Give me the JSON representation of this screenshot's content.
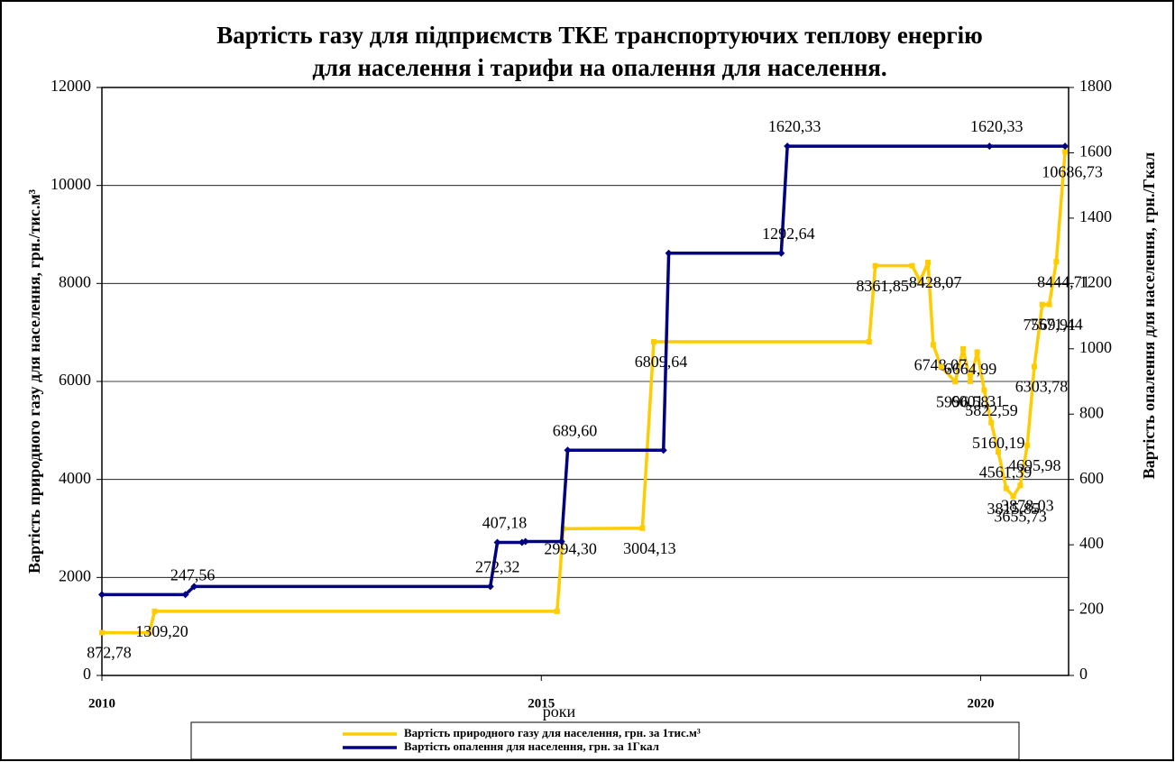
{
  "chart_data": {
    "type": "line",
    "title": [
      "Вартість газу для підприємств ТКЕ транспортуючих теплову енергію",
      "для населення і тарифи на опалення для населення."
    ],
    "x_label": "роки",
    "y_label": "Вартість природного газу для населення, грн./тис.м³",
    "y2_label": "Вартість опалення для населення, грн./Гкал",
    "xlim": [
      2010,
      2021
    ],
    "xticks": [
      2010,
      2015,
      2020
    ],
    "ylim": [
      0,
      12000
    ],
    "yticks": [
      0,
      2000,
      4000,
      6000,
      8000,
      10000,
      12000
    ],
    "y2lim": [
      0,
      1800
    ],
    "y2ticks": [
      0,
      200,
      400,
      600,
      800,
      1000,
      1200,
      1400,
      1600,
      1800
    ],
    "grid": true,
    "legend": "bottom",
    "series": [
      {
        "name": "Вартість природного газу для населення, грн. за 1тис.м³",
        "color": "#ffcc00",
        "axis": "y",
        "x": [
          2010,
          2010.54,
          2010.6,
          2015.18,
          2015.25,
          2016.15,
          2016.28,
          2018.73,
          2018.8,
          2019.22,
          2019.31,
          2019.4,
          2019.46,
          2019.55,
          2019.71,
          2019.8,
          2019.88,
          2019.96,
          2020.04,
          2020.12,
          2020.2,
          2020.29,
          2020.37,
          2020.45,
          2020.53,
          2020.61,
          2020.7,
          2020.78,
          2020.86,
          2020.96
        ],
        "values": [
          872.78,
          872.78,
          1309.2,
          1309.2,
          2994.3,
          3004.13,
          6809.64,
          6809.64,
          8361.85,
          8361.85,
          8050,
          8428.07,
          6748.07,
          6300,
          5996.58,
          6664.99,
          6001.31,
          6600,
          5822.59,
          5160.19,
          4561.39,
          3815.85,
          3655.73,
          3878.03,
          4695.98,
          6303.78,
          7569.91,
          7571.44,
          8444.71,
          10686.73
        ],
        "value_labels": [
          "872,78",
          null,
          "1309,20",
          null,
          "2994,30",
          "3004,13",
          "6809,64",
          null,
          "8361,85",
          null,
          null,
          "8428,07",
          "6748,07",
          null,
          "5996,58",
          "6664,99",
          "6001,31",
          null,
          "5822,59",
          "5160,19",
          "4561,39",
          "3815,85",
          "3655,73",
          "3878,03",
          "4695,98",
          "6303,78",
          "7569,91",
          "7571,44",
          "8444,71",
          "10686,73"
        ]
      },
      {
        "name": "Вартість опалення для населення, грн. за 1Гкал",
        "color": "#000080",
        "axis": "y2",
        "x": [
          2010,
          2010.95,
          2011.05,
          2014.42,
          2014.5,
          2014.78,
          2014.82,
          2015.23,
          2015.3,
          2016.39,
          2016.45,
          2017.73,
          2017.8,
          2020.1,
          2020.96
        ],
        "values": [
          247.56,
          247.56,
          272.32,
          272.32,
          407.18,
          407.18,
          410,
          410,
          689.6,
          689.6,
          1292.64,
          1292.64,
          1620.33,
          1620.33,
          1620.33
        ],
        "value_labels": [
          null,
          "247,56",
          null,
          "272,32",
          "407,18",
          null,
          null,
          null,
          "689,60",
          null,
          null,
          "1292,64",
          "1620,33",
          "1620,33",
          null
        ]
      }
    ]
  }
}
